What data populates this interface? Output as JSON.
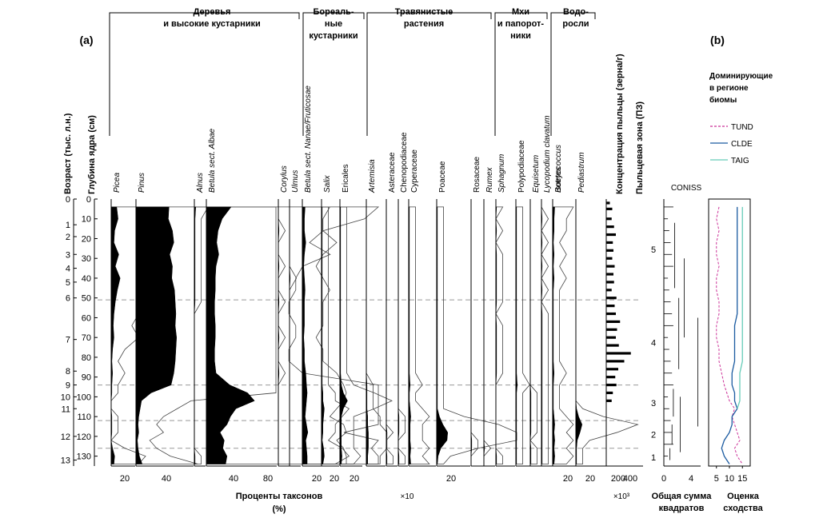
{
  "chart_data": {
    "type": "pollen-diagram",
    "panel_labels": [
      "(a)",
      "(b)"
    ],
    "age_axis": {
      "label": "Возраст (тыс. л.н.)",
      "ticks": [
        {
          "age": "0",
          "depth": 0
        },
        {
          "age": "1",
          "depth": 13
        },
        {
          "age": "2",
          "depth": 19
        },
        {
          "age": "3",
          "depth": 28
        },
        {
          "age": "4",
          "depth": 35
        },
        {
          "age": "5",
          "depth": 42
        },
        {
          "age": "6",
          "depth": 50
        },
        {
          "age": "7",
          "depth": 71
        },
        {
          "age": "8",
          "depth": 87
        },
        {
          "age": "9",
          "depth": 94
        },
        {
          "age": "10",
          "depth": 100
        },
        {
          "age": "11",
          "depth": 106
        },
        {
          "age": "12",
          "depth": 120
        },
        {
          "age": "13",
          "depth": 132
        }
      ]
    },
    "depth_axis": {
      "label": "Глубина ядра (см)",
      "ticks": [
        0,
        10,
        20,
        30,
        40,
        50,
        60,
        70,
        80,
        90,
        100,
        110,
        120,
        130
      ],
      "range": [
        0,
        135
      ]
    },
    "groups": [
      {
        "label": "Деревья\nи высокие кустарники"
      },
      {
        "label": "Бореаль-\nные\nкустарники"
      },
      {
        "label": "Травянистые\nрастения"
      },
      {
        "label": "Мхи\nи папорот-\nники"
      },
      {
        "label": "Водо-\nросли"
      }
    ],
    "depths": [
      4,
      10,
      16,
      22,
      28,
      34,
      40,
      46,
      52,
      58,
      64,
      70,
      76,
      82,
      88,
      94,
      98,
      102,
      106,
      110,
      114,
      118,
      122,
      126,
      130,
      134
    ],
    "taxa": [
      {
        "name": "Picea",
        "italic": true,
        "scale": 1,
        "exaggeration": 10,
        "values": [
          8,
          10,
          5,
          4,
          11,
          6,
          13,
          9,
          6,
          4,
          3,
          4,
          2,
          1,
          2,
          1,
          1,
          0,
          0,
          1,
          1,
          1,
          0,
          2,
          5,
          4
        ]
      },
      {
        "name": "Pinus",
        "italic": true,
        "scale": 1,
        "exaggeration": 10,
        "values": [
          48,
          47,
          53,
          55,
          49,
          53,
          52,
          56,
          57,
          58,
          57,
          59,
          58,
          57,
          55,
          51,
          22,
          8,
          6,
          4,
          3,
          4,
          2,
          3,
          5,
          9
        ]
      },
      {
        "name": "Alnus",
        "italic": true,
        "scale": 1,
        "exaggeration": 10,
        "values": [
          2,
          1,
          1,
          1,
          1,
          1,
          1,
          1,
          1,
          0,
          0,
          0,
          0,
          0,
          0,
          0,
          0,
          0,
          0,
          0,
          0,
          0,
          0,
          0,
          1,
          1
        ]
      },
      {
        "name": "Betula sect. Albae",
        "italic": true,
        "scale": 1,
        "exaggeration": 10,
        "values": [
          36,
          23,
          17,
          15,
          18,
          14,
          13,
          13,
          12,
          12,
          13,
          13,
          12,
          12,
          14,
          34,
          60,
          70,
          43,
          35,
          30,
          20,
          26,
          24,
          30,
          28
        ]
      },
      {
        "name": "Corylus",
        "italic": true,
        "scale": 1,
        "exaggeration": 10,
        "values": [
          0,
          0,
          1,
          0,
          0,
          1,
          0,
          0,
          1,
          0,
          0,
          1,
          0,
          0,
          1,
          0,
          0,
          0,
          0,
          0,
          0,
          0,
          0,
          0,
          0,
          0
        ]
      },
      {
        "name": "Ulmus",
        "italic": true,
        "scale": 1,
        "exaggeration": 10,
        "values": [
          0,
          0,
          0,
          0,
          0,
          0,
          1,
          0,
          0,
          0,
          0,
          0,
          0,
          0,
          0,
          0,
          0,
          0,
          0,
          0,
          0,
          0,
          0,
          0,
          0,
          0
        ]
      },
      {
        "name": "Betula sect. Nanae/Fruticosae",
        "italic": true,
        "scale": 1,
        "exaggeration": 10,
        "values": [
          4,
          3,
          3,
          5,
          3,
          2,
          3,
          4,
          3,
          3,
          3,
          2,
          3,
          3,
          5,
          6,
          7,
          6,
          5,
          4,
          6,
          8,
          5,
          6,
          7,
          7
        ]
      },
      {
        "name": "Salix",
        "italic": true,
        "scale": 1,
        "exaggeration": 10,
        "values": [
          1,
          1,
          1,
          1,
          1,
          1,
          1,
          1,
          1,
          1,
          1,
          1,
          1,
          1,
          1,
          1,
          2,
          2,
          4,
          3,
          2,
          2,
          1,
          3,
          4,
          2
        ]
      },
      {
        "name": "Ericales",
        "italic": false,
        "scale": 1,
        "exaggeration": 10,
        "values": [
          1,
          1,
          1,
          1,
          1,
          1,
          1,
          1,
          1,
          1,
          1,
          1,
          1,
          1,
          1,
          2,
          5,
          11,
          5,
          2,
          2,
          2,
          2,
          2,
          3,
          2
        ]
      },
      {
        "name": "Artemisia",
        "italic": true,
        "scale": 1,
        "exaggeration": 10,
        "values": [
          0,
          0,
          0,
          0,
          0,
          0,
          0,
          0,
          0,
          0,
          0,
          0,
          0,
          0,
          0,
          1,
          1,
          1,
          1,
          2,
          2,
          3,
          3,
          3,
          2,
          2
        ]
      },
      {
        "name": "Asteraceae",
        "italic": false,
        "scale": 1,
        "exaggeration": 10,
        "values": [
          0,
          0,
          0,
          0,
          0,
          0,
          0,
          0,
          0,
          0,
          0,
          0,
          0,
          0,
          0,
          0,
          0,
          0,
          0,
          0,
          0,
          1,
          0,
          0,
          1,
          1
        ]
      },
      {
        "name": "Chenopodiaceae",
        "italic": false,
        "scale": 1,
        "exaggeration": 10,
        "values": [
          0,
          0,
          0,
          0,
          0,
          0,
          0,
          0,
          0,
          0,
          0,
          0,
          0,
          0,
          0,
          0,
          0,
          0,
          0,
          1,
          1,
          1,
          0,
          0,
          1,
          1
        ]
      },
      {
        "name": "Cyperaceae",
        "italic": false,
        "scale": 1,
        "exaggeration": 10,
        "values": [
          1,
          1,
          1,
          1,
          1,
          1,
          1,
          1,
          1,
          1,
          1,
          1,
          1,
          1,
          1,
          2,
          1,
          1,
          2,
          3,
          2,
          2,
          2,
          3,
          2,
          3
        ]
      },
      {
        "name": "Poaceae",
        "italic": false,
        "scale": 1,
        "exaggeration": 10,
        "values": [
          1,
          1,
          1,
          1,
          1,
          1,
          1,
          1,
          1,
          1,
          1,
          1,
          1,
          1,
          1,
          1,
          1,
          1,
          1,
          4,
          9,
          16,
          15,
          6,
          2,
          1
        ]
      },
      {
        "name": "Rosaceae",
        "italic": false,
        "scale": 1,
        "exaggeration": 10,
        "values": [
          0,
          0,
          0,
          0,
          0,
          0,
          0,
          0,
          0,
          0,
          0,
          0,
          0,
          0,
          0,
          0,
          0,
          0,
          0,
          0,
          0,
          0,
          1,
          1,
          0,
          0
        ]
      },
      {
        "name": "Rumex",
        "italic": true,
        "scale": 1,
        "exaggeration": 10,
        "values": [
          0,
          0,
          0,
          0,
          0,
          0,
          0,
          0,
          0,
          0,
          0,
          0,
          0,
          0,
          0,
          0,
          0,
          0,
          0,
          0,
          0,
          0,
          0,
          1,
          0,
          0
        ]
      },
      {
        "name": "Sphagnum",
        "italic": true,
        "scale": 1,
        "exaggeration": 10,
        "values": [
          1,
          0,
          1,
          0,
          1,
          1,
          1,
          1,
          1,
          0,
          1,
          1,
          1,
          1,
          1,
          0,
          0,
          0,
          0,
          0,
          0,
          0,
          0,
          0,
          1,
          1
        ]
      },
      {
        "name": "Polypodiaceae",
        "italic": false,
        "scale": 1,
        "exaggeration": 10,
        "values": [
          1,
          1,
          1,
          1,
          1,
          1,
          1,
          1,
          1,
          1,
          1,
          1,
          1,
          1,
          1,
          2,
          1,
          1,
          1,
          1,
          1,
          1,
          1,
          1,
          1,
          1
        ]
      },
      {
        "name": "Equisetum",
        "italic": true,
        "scale": 1,
        "exaggeration": 10,
        "values": [
          0,
          0,
          0,
          0,
          0,
          0,
          0,
          0,
          0,
          0,
          0,
          0,
          0,
          0,
          0,
          0,
          1,
          1,
          1,
          1,
          1,
          1,
          0,
          1,
          1,
          1
        ]
      },
      {
        "name": "Lycopodium clavatum",
        "italic": true,
        "scale": 1,
        "exaggeration": 10,
        "values": [
          0,
          1,
          0,
          1,
          0,
          1,
          0,
          1,
          0,
          1,
          1,
          1,
          1,
          1,
          1,
          1,
          1,
          1,
          1,
          1,
          1,
          1,
          1,
          1,
          1,
          1
        ]
      },
      {
        "name": "Isoetes",
        "italic": true,
        "scale": 1,
        "exaggeration": 10,
        "values": [
          0,
          0,
          0,
          0,
          0,
          0,
          0,
          0,
          0,
          0,
          0,
          0,
          0,
          0,
          0,
          0,
          0,
          0,
          0,
          0,
          0,
          0,
          0,
          0,
          0,
          0
        ]
      },
      {
        "name": "Botryococcus",
        "italic": true,
        "scale": 1,
        "exaggeration": 10,
        "values": [
          3,
          2,
          2,
          1,
          2,
          1,
          2,
          1,
          1,
          1,
          1,
          1,
          1,
          1,
          2,
          1,
          1,
          1,
          1,
          2,
          3,
          2,
          3,
          2,
          3,
          2
        ]
      },
      {
        "name": "Pediastrum",
        "italic": true,
        "scale": 1,
        "exaggeration": 10,
        "values": [
          0,
          0,
          0,
          0,
          0,
          0,
          0,
          0,
          0,
          0,
          0,
          0,
          0,
          0,
          0,
          0,
          0,
          0,
          1,
          4,
          9,
          6,
          2,
          1,
          1,
          1
        ]
      }
    ],
    "pollen_concentration": {
      "label": "Концентрация пыльцы (зерна/г)",
      "multiplier": "×10³",
      "ticks": [
        200,
        400
      ],
      "depths": [
        2,
        5,
        10,
        14,
        18,
        22,
        26,
        30,
        34,
        38,
        42,
        46,
        50,
        54,
        58,
        62,
        66,
        70,
        74,
        78,
        82,
        86,
        90,
        94,
        98,
        102
      ],
      "values": [
        60,
        100,
        90,
        130,
        160,
        110,
        120,
        100,
        140,
        120,
        130,
        90,
        170,
        140,
        160,
        230,
        180,
        160,
        210,
        410,
        300,
        200,
        150,
        170,
        110,
        90
      ]
    },
    "pollen_zones": {
      "label": "Пыльцевая зона (ПЗ)",
      "zones": [
        {
          "name": "5",
          "top": 0,
          "bottom": 51
        },
        {
          "name": "4",
          "top": 51,
          "bottom": 94
        },
        {
          "name": "3",
          "top": 94,
          "bottom": 112
        },
        {
          "name": "2",
          "top": 112,
          "bottom": 126
        },
        {
          "name": "1",
          "top": 126,
          "bottom": 135
        }
      ]
    },
    "coniss": {
      "title": "CONISS",
      "xlabel": "Общая сумма\nквадратов",
      "ticks": [
        0,
        4
      ]
    },
    "biomes": {
      "title": "Доминирующие\nв регионе\nбиомы",
      "xlabel": "Оценка\nсходства",
      "ticks": [
        5,
        10,
        15
      ],
      "series": [
        {
          "name": "TUND",
          "color": "#cc3399",
          "dash": true,
          "values": [
            6,
            5,
            6,
            5,
            5,
            6,
            5,
            5,
            6,
            6,
            5,
            5,
            6,
            6,
            7,
            8,
            9,
            10,
            12,
            11,
            12,
            13,
            14,
            12,
            13,
            15
          ]
        },
        {
          "name": "CLDE",
          "color": "#1a5aa0",
          "dash": false,
          "values": [
            13,
            13,
            13,
            13,
            13,
            13,
            13,
            13,
            13,
            13,
            12,
            12,
            12,
            12,
            11,
            11,
            12,
            12,
            13,
            11,
            11,
            10,
            8,
            7,
            8,
            10
          ]
        },
        {
          "name": "TAIG",
          "color": "#66ccb8",
          "dash": false,
          "values": [
            15,
            15,
            15,
            15,
            15,
            15,
            15,
            15,
            15,
            15,
            15,
            15,
            15,
            15,
            14,
            14,
            14,
            14,
            13,
            null,
            null,
            null,
            null,
            null,
            null,
            null
          ]
        }
      ]
    },
    "bottom_labels": {
      "percent": "Проценты таксонов\n(%)",
      "x10": "×10"
    },
    "zone_boundaries": [
      51,
      94,
      112,
      126
    ]
  }
}
